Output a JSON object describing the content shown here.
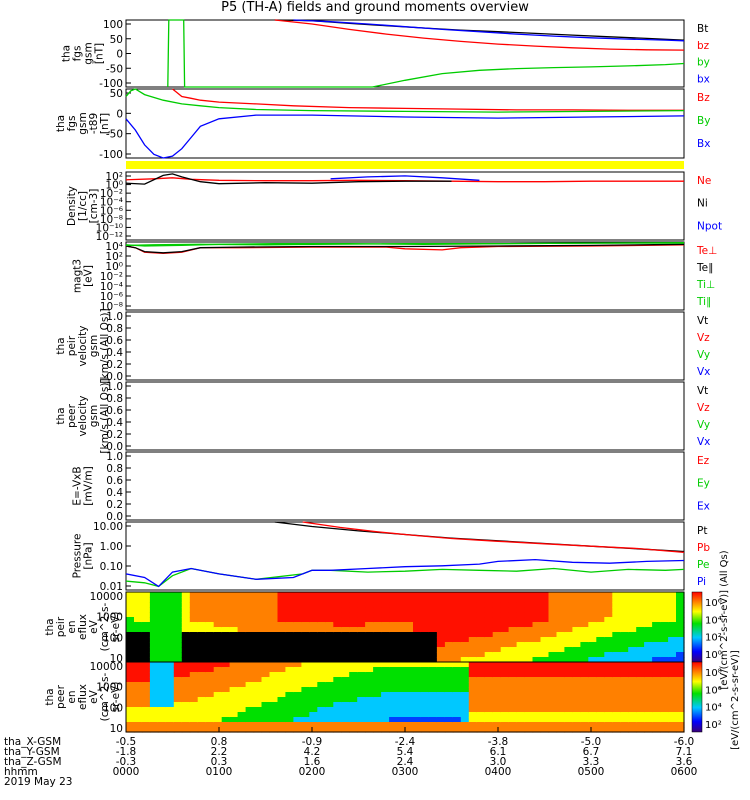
{
  "title": "P5 (TH-A) fields and ground moments overview",
  "chart_data": [
    {
      "id": "p1",
      "type": "line",
      "ylabel": [
        "tha",
        "fgs",
        "gsm",
        "[nT]"
      ],
      "yticks": [
        "100",
        "50",
        "0",
        "-50",
        "-100"
      ],
      "ylim": [
        -100,
        100
      ],
      "series": [
        {
          "name": "Bt",
          "color": "#000000",
          "x": [
            0,
            0.4,
            0.8,
            1.2,
            1.6,
            2.0,
            2.4,
            2.8,
            3.2,
            3.6,
            4.0,
            4.4,
            4.8,
            5.2,
            5.6,
            6.0
          ],
          "y": [
            null,
            null,
            null,
            null,
            100,
            98,
            90,
            83,
            76,
            70,
            65,
            60,
            55,
            50,
            45,
            40
          ]
        },
        {
          "name": "bz",
          "color": "#ff0000",
          "x": [
            1.6,
            2.0,
            2.4,
            2.8,
            3.2,
            3.6,
            4.0,
            4.4,
            4.8,
            5.2,
            5.6,
            6.0
          ],
          "y": [
            100,
            88,
            72,
            58,
            46,
            36,
            28,
            22,
            17,
            13,
            11,
            10
          ]
        },
        {
          "name": "by",
          "color": "#00cc00",
          "x": [
            0.45,
            0.46,
            0.5,
            0.62,
            0.63,
            2.65,
            3.0,
            3.4,
            3.8,
            4.2,
            4.6,
            5.0,
            5.4,
            5.8,
            6.0
          ],
          "y": [
            -100,
            100,
            100,
            100,
            -100,
            -100,
            -80,
            -60,
            -50,
            -45,
            -42,
            -40,
            -37,
            -33,
            -30
          ]
        },
        {
          "name": "bx",
          "color": "#0000ff",
          "x": [
            1.8,
            2.2,
            2.6,
            3.0,
            3.4,
            3.8,
            4.2,
            4.6,
            5.0,
            5.4,
            5.8,
            6.0
          ],
          "y": [
            100,
            95,
            88,
            80,
            72,
            65,
            58,
            52,
            47,
            43,
            40,
            38
          ]
        }
      ]
    },
    {
      "id": "p2",
      "type": "line",
      "ylabel": [
        "tha",
        "fgs",
        "gsm",
        "-t89",
        "[nT]"
      ],
      "yticks": [
        "50",
        "0",
        "-50",
        "-100"
      ],
      "ylim": [
        -125,
        60
      ],
      "series": [
        {
          "name": "Bz",
          "color": "#ff0000",
          "x": [
            0.5,
            0.55,
            0.6,
            0.7,
            0.8,
            1.0,
            1.4,
            1.8,
            2.4,
            3.0,
            3.6,
            4.2,
            4.8,
            5.4,
            6.0
          ],
          "y": [
            60,
            50,
            40,
            35,
            30,
            25,
            20,
            15,
            10,
            8,
            6,
            4,
            4,
            3,
            3
          ]
        },
        {
          "name": "By",
          "color": "#00cc00",
          "x": [
            0,
            0.05,
            0.1,
            0.2,
            0.4,
            0.6,
            0.8,
            1.0,
            1.4,
            2.0,
            3.0,
            4.0,
            5.0,
            6.0
          ],
          "y": [
            40,
            55,
            60,
            45,
            30,
            20,
            15,
            10,
            5,
            2,
            0,
            -2,
            0,
            2
          ]
        },
        {
          "name": "Bx",
          "color": "#0000ff",
          "x": [
            0,
            0.1,
            0.2,
            0.3,
            0.4,
            0.5,
            0.6,
            0.7,
            0.8,
            1.0,
            1.4,
            2.0,
            3.0,
            4.0,
            5.0,
            6.0
          ],
          "y": [
            -20,
            -50,
            -90,
            -115,
            -125,
            -120,
            -100,
            -70,
            -40,
            -20,
            -10,
            -10,
            -15,
            -18,
            -15,
            -12
          ]
        }
      ]
    },
    {
      "id": "p3",
      "type": "line",
      "log": true,
      "ylabel": [
        "Density",
        "[1/cc]",
        "[cm-3]"
      ],
      "yticks": [
        "10²",
        "10⁰",
        "10⁻²",
        "10⁻⁴",
        "10⁻⁶",
        "10⁻⁸",
        "10⁻¹⁰",
        "10⁻¹²"
      ],
      "ylim": [
        -12,
        2
      ],
      "series": [
        {
          "name": "Ne",
          "color": "#ff0000",
          "x": [
            0,
            0.3,
            0.5,
            0.7,
            1.0,
            1.5,
            2.0,
            2.5,
            3.0,
            3.5,
            4.0,
            4.5,
            5.0,
            5.5,
            6.0
          ],
          "y": [
            0.4,
            0.6,
            0.8,
            0.5,
            0.3,
            0.2,
            0.2,
            0.3,
            0.2,
            0.1,
            0,
            0,
            0.1,
            0.1,
            0.1
          ]
        },
        {
          "name": "Ni",
          "color": "#000000",
          "x": [
            0,
            0.2,
            0.4,
            0.5,
            0.6,
            0.8,
            1.0,
            1.5,
            2.0,
            2.5,
            3.0,
            3.5
          ],
          "y": [
            -0.3,
            -0.5,
            1.3,
            1.6,
            1.0,
            0,
            -0.4,
            -0.2,
            -0.3,
            0,
            0.1,
            0.1
          ]
        },
        {
          "name": "Npot",
          "color": "#0000ff",
          "x": [
            2.2,
            2.6,
            3.0,
            3.4,
            3.8
          ],
          "y": [
            0.6,
            1.0,
            1.2,
            0.8,
            0.3
          ]
        }
      ]
    },
    {
      "id": "p4",
      "type": "line",
      "log": true,
      "ylabel": [
        "magt3",
        "[eV]"
      ],
      "yticks": [
        "10⁴",
        "10²",
        "10⁰",
        "10⁻²",
        "10⁻⁴",
        "10⁻⁶",
        "10⁻⁸"
      ],
      "ylim": [
        -8,
        4
      ],
      "series": [
        {
          "name": "Te⊥",
          "color": "#ff0000",
          "x": [
            0,
            0.1,
            0.2,
            0.4,
            0.6,
            0.8,
            1.2,
            2.0,
            2.8,
            3.0,
            3.4,
            3.6,
            4.0,
            5.0,
            6.0
          ],
          "y": [
            3.3,
            3.0,
            2.2,
            2.0,
            2.2,
            3.0,
            3.0,
            3.1,
            3.1,
            2.8,
            2.6,
            3.0,
            3.2,
            3.3,
            3.5
          ]
        },
        {
          "name": "Te∥",
          "color": "#000000",
          "x": [
            0,
            0.1,
            0.2,
            0.4,
            0.6,
            0.8,
            1.2,
            2.0,
            3.0,
            4.0,
            5.0,
            6.0
          ],
          "y": [
            3.3,
            3.0,
            2.3,
            2.1,
            2.3,
            3.0,
            3.1,
            3.2,
            3.2,
            3.3,
            3.4,
            3.6
          ]
        },
        {
          "name": "Ti⊥",
          "color": "#00cc00",
          "x": [
            0,
            0.3,
            0.8,
            1.5,
            2.0,
            3.0,
            4.0,
            5.0,
            6.0
          ],
          "y": [
            3.4,
            3.5,
            3.6,
            3.5,
            3.6,
            3.7,
            3.7,
            3.8,
            3.8
          ]
        },
        {
          "name": "Ti∥",
          "color": "#00cc00",
          "x": [
            0,
            0.2,
            0.6,
            1.0,
            1.6,
            2.4,
            3.2,
            4.0,
            5.0,
            6.0
          ],
          "y": [
            3.5,
            3.3,
            3.4,
            3.6,
            3.7,
            3.7,
            3.6,
            3.7,
            3.8,
            3.9
          ]
        }
      ]
    },
    {
      "id": "p5",
      "type": "line",
      "ylabel": [
        "tha",
        "peir",
        "velocity",
        "gsm",
        "[km/s (All Qs)]"
      ],
      "yticks": [
        "1.0",
        "0.8",
        "0.6",
        "0.4",
        "0.2",
        "0.0"
      ],
      "ylim": [
        0,
        1
      ],
      "series": [
        {
          "name": "Vt",
          "color": "#000000",
          "x": [],
          "y": []
        },
        {
          "name": "Vz",
          "color": "#ff0000",
          "x": [],
          "y": []
        },
        {
          "name": "Vy",
          "color": "#00cc00",
          "x": [],
          "y": []
        },
        {
          "name": "Vx",
          "color": "#0000ff",
          "x": [],
          "y": []
        }
      ]
    },
    {
      "id": "p6",
      "type": "line",
      "ylabel": [
        "tha",
        "peer",
        "velocity",
        "gsm",
        "[km/s (All Qs)]"
      ],
      "yticks": [
        "1.0",
        "0.8",
        "0.6",
        "0.4",
        "0.2",
        "0.0"
      ],
      "ylim": [
        0,
        1
      ],
      "series": [
        {
          "name": "Vt",
          "color": "#000000",
          "x": [],
          "y": []
        },
        {
          "name": "Vz",
          "color": "#ff0000",
          "x": [],
          "y": []
        },
        {
          "name": "Vy",
          "color": "#00cc00",
          "x": [],
          "y": []
        },
        {
          "name": "Vx",
          "color": "#0000ff",
          "x": [],
          "y": []
        }
      ]
    },
    {
      "id": "p7",
      "type": "line",
      "ylabel": [
        "E=-VxB",
        "[mV/m]"
      ],
      "yticks": [
        "1.0",
        "0.8",
        "0.6",
        "0.4",
        "0.2",
        "0.0"
      ],
      "ylim": [
        0,
        1
      ],
      "series": [
        {
          "name": "Ez",
          "color": "#ff0000",
          "x": [],
          "y": []
        },
        {
          "name": "Ey",
          "color": "#00cc00",
          "x": [],
          "y": []
        },
        {
          "name": "Ex",
          "color": "#0000ff",
          "x": [],
          "y": []
        }
      ]
    },
    {
      "id": "p8",
      "type": "line",
      "log": true,
      "ylabel": [
        "Pressure",
        "[nPa]"
      ],
      "yticks": [
        "10.00",
        "1.00",
        "0.10",
        "0.01"
      ],
      "ylim": [
        -2.2,
        1.6
      ],
      "series": [
        {
          "name": "Pt",
          "color": "#000000",
          "x": [
            1.6,
            2.0,
            2.5,
            3.0,
            3.5,
            4.0,
            4.5,
            5.0,
            5.5,
            6.0
          ],
          "y": [
            1.6,
            1.35,
            1.1,
            0.9,
            0.7,
            0.55,
            0.4,
            0.25,
            0.1,
            -0.05
          ]
        },
        {
          "name": "Pb",
          "color": "#ff0000",
          "x": [
            1.9,
            2.3,
            2.7,
            3.1,
            3.5,
            4.0,
            4.5,
            5.0,
            5.5,
            6.0
          ],
          "y": [
            1.6,
            1.3,
            1.05,
            0.85,
            0.68,
            0.52,
            0.38,
            0.25,
            0.12,
            -0.1
          ]
        },
        {
          "name": "Pe",
          "color": "#00cc00",
          "x": [
            0,
            0.2,
            0.35,
            0.5,
            0.7,
            1.0,
            1.4,
            1.9,
            2.0,
            2.2,
            2.6,
            3.0,
            3.4,
            3.8,
            4.2,
            4.6,
            5.0,
            5.4,
            5.8,
            6.0
          ],
          "y": [
            -1.7,
            -1.8,
            -2.0,
            -1.4,
            -1.0,
            -1.3,
            -1.6,
            -1.3,
            -1.1,
            -1.1,
            -1.2,
            -1.15,
            -1.05,
            -1.1,
            -1.15,
            -1.0,
            -1.2,
            -1.05,
            -1.1,
            -1.05
          ]
        },
        {
          "name": "Pi",
          "color": "#0000ff",
          "x": [
            0,
            0.2,
            0.35,
            0.5,
            0.7,
            1.0,
            1.4,
            1.8,
            2.0,
            2.2,
            2.6,
            3.0,
            3.4,
            3.8,
            4.0,
            4.4,
            4.8,
            5.2,
            5.6,
            6.0
          ],
          "y": [
            -1.3,
            -1.5,
            -2.0,
            -1.2,
            -1.0,
            -1.3,
            -1.6,
            -1.5,
            -1.1,
            -1.1,
            -1.0,
            -0.9,
            -0.85,
            -0.75,
            -0.6,
            -0.5,
            -0.65,
            -0.7,
            -0.6,
            -0.55
          ]
        }
      ]
    },
    {
      "id": "p9",
      "type": "heatmap",
      "ylabel": [
        "tha",
        "peir",
        "en",
        "eflux",
        "eV",
        "(cm^2-s-",
        "sr-eV)"
      ],
      "yticks": [
        "10000",
        "1000",
        "100",
        "10"
      ],
      "colorbar_label": "[eV/(cm^2-s-sr-eV)] (All Qs)",
      "colorbar_ticks": [
        "10⁶",
        "10⁴",
        "10²",
        "10⁰"
      ]
    },
    {
      "id": "p10",
      "type": "heatmap",
      "ylabel": [
        "tha",
        "peer",
        "en",
        "eflux",
        "eV",
        "(cm^2-s-",
        "sr-eV)"
      ],
      "yticks": [
        "10000",
        "1000",
        "100",
        "10"
      ],
      "colorbar_label": "[eV/(cm^2-s-sr-eV)]",
      "colorbar_ticks": [
        "10⁸",
        "10⁶",
        "10⁴",
        "10²"
      ]
    }
  ],
  "xaxis": {
    "rows": [
      {
        "label": "tha_X-GSM",
        "values": [
          "-0.5",
          "0.8",
          "-0.9",
          "-2.4",
          "-3.8",
          "-5.0",
          "-6.0"
        ]
      },
      {
        "label": "tha_Y-GSM",
        "values": [
          "-1.8",
          "2.2",
          "4.2",
          "5.4",
          "6.1",
          "6.7",
          "7.1"
        ]
      },
      {
        "label": "tha_Z-GSM",
        "values": [
          "-0.3",
          "0.3",
          "1.6",
          "2.4",
          "3.0",
          "3.3",
          "3.6"
        ]
      },
      {
        "label": "hhmm",
        "values": [
          "0000",
          "0100",
          "0200",
          "0300",
          "0400",
          "0500",
          "0600"
        ]
      }
    ],
    "date": "2019 May 23"
  }
}
